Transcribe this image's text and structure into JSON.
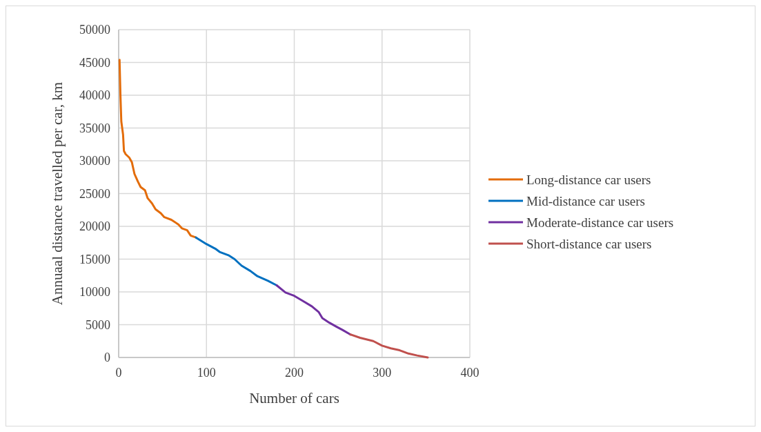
{
  "chart_data": {
    "type": "line",
    "xlabel": "Number of cars",
    "ylabel": "Annuaal distance travelled per car, km",
    "xlim": [
      0,
      400
    ],
    "xticks": [
      0,
      100,
      200,
      300,
      400
    ],
    "ylim": [
      0,
      50000
    ],
    "yticks": [
      0,
      5000,
      10000,
      15000,
      20000,
      25000,
      30000,
      35000,
      40000,
      45000,
      50000
    ],
    "grid": true,
    "legend": "right",
    "series": [
      {
        "name": "Long-distance car users",
        "color": "#e36c0a",
        "x": [
          1,
          2,
          3,
          5,
          6,
          8,
          12,
          15,
          18,
          22,
          25,
          30,
          33,
          38,
          42,
          48,
          52,
          60,
          68,
          72,
          78,
          82,
          88
        ],
        "values": [
          45400,
          40000,
          36000,
          34000,
          31500,
          31000,
          30500,
          29800,
          28000,
          26800,
          26000,
          25500,
          24300,
          23500,
          22600,
          22000,
          21400,
          21000,
          20300,
          19700,
          19400,
          18600,
          18300
        ]
      },
      {
        "name": "Mid-distance car users",
        "color": "#0070c0",
        "x": [
          88,
          100,
          110,
          115,
          125,
          132,
          140,
          150,
          158,
          170,
          180
        ],
        "values": [
          18300,
          17300,
          16600,
          16100,
          15600,
          15000,
          14000,
          13200,
          12400,
          11700,
          11000
        ]
      },
      {
        "name": "Moderate-distance car users",
        "color": "#7030a0",
        "x": [
          180,
          190,
          200,
          210,
          220,
          228,
          232,
          240,
          248,
          255,
          264
        ],
        "values": [
          11000,
          9900,
          9400,
          8600,
          7800,
          6900,
          6000,
          5300,
          4700,
          4200,
          3500
        ]
      },
      {
        "name": "Short-distance car users",
        "color": "#c0504d",
        "x": [
          264,
          275,
          290,
          300,
          310,
          320,
          330,
          340,
          352
        ],
        "values": [
          3500,
          3000,
          2500,
          1800,
          1400,
          1100,
          600,
          300,
          0
        ]
      }
    ]
  }
}
